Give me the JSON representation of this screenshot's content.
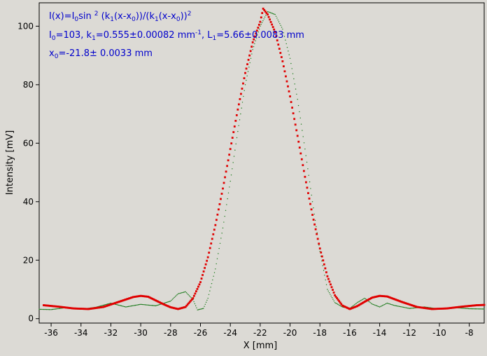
{
  "chart_data": {
    "type": "scatter",
    "xlabel": "X [mm]",
    "ylabel": "Intensity [mV]",
    "xlim": [
      -36.8,
      -7.0
    ],
    "ylim": [
      -1.5,
      108
    ],
    "xticks": [
      -36,
      -34,
      -32,
      -30,
      -28,
      -26,
      -24,
      -22,
      -20,
      -18,
      -16,
      -14,
      -12,
      -10,
      -8
    ],
    "yticks": [
      0,
      20,
      40,
      60,
      80,
      100
    ],
    "xtick_labels": [
      "-36",
      "-34",
      "-32",
      "-30",
      "-28",
      "-26",
      "-24",
      "-22",
      "-20",
      "-18",
      "-16",
      "-14",
      "-12",
      "-10",
      "-8"
    ],
    "ytick_labels": [
      "0",
      "20",
      "40",
      "60",
      "80",
      "100"
    ],
    "grid": false,
    "annotations": {
      "line1": {
        "a": "I(x)=I",
        "a_sub": "0",
        "b": "sin",
        "b_sup": "2",
        "c": " (k",
        "c_sub": "1",
        "d": "(x-x",
        "d_sub": "0",
        "e": "))/(k",
        "e_sub": "1",
        "f": "(x-x",
        "f_sub": "0",
        "g": "))",
        "g_sup": "2"
      },
      "line2": {
        "a": "I",
        "a_sub": "0",
        "b": "=103,  k",
        "b_sub": "1",
        "c": "=0.555±0.00082 mm",
        "c_sup": "-1",
        "d": ",   L",
        "d_sub": "1",
        "e": "=5.66±0.0083 mm"
      },
      "line3": {
        "a": "x",
        "a_sub": "0",
        "b": "=-21.8±   0.0033 mm"
      }
    },
    "fit": {
      "I0": 103,
      "k1": 0.555,
      "x0": -21.8,
      "baseline": 3.2
    },
    "series": [
      {
        "style": "fit-points",
        "color": "#e00000",
        "points": [
          [
            -36.5,
            4.6
          ],
          [
            -35.5,
            4.1
          ],
          [
            -34.5,
            3.5
          ],
          [
            -33.5,
            3.3
          ],
          [
            -32.5,
            4.0
          ],
          [
            -31.5,
            5.7
          ],
          [
            -30.5,
            7.4
          ],
          [
            -30.0,
            7.8
          ],
          [
            -29.5,
            7.5
          ],
          [
            -28.5,
            5.0
          ],
          [
            -28.0,
            3.9
          ],
          [
            -27.5,
            3.3
          ],
          [
            -27.0,
            4.0
          ],
          [
            -26.5,
            7.0
          ],
          [
            -26.0,
            12.5
          ],
          [
            -25.5,
            21.0
          ],
          [
            -25.0,
            32.0
          ],
          [
            -24.5,
            44.5
          ],
          [
            -24.0,
            58.0
          ],
          [
            -23.5,
            71.5
          ],
          [
            -23.0,
            84.0
          ],
          [
            -22.5,
            94.5
          ],
          [
            -22.0,
            101.5
          ],
          [
            -21.8,
            106.0
          ],
          [
            -21.5,
            104.0
          ],
          [
            -21.0,
            98.0
          ],
          [
            -20.5,
            88.0
          ],
          [
            -20.0,
            76.0
          ],
          [
            -19.5,
            62.5
          ],
          [
            -19.0,
            48.5
          ],
          [
            -18.5,
            35.5
          ],
          [
            -18.0,
            24.0
          ],
          [
            -17.5,
            14.5
          ],
          [
            -17.0,
            8.0
          ],
          [
            -16.5,
            4.5
          ],
          [
            -16.0,
            3.3
          ],
          [
            -15.5,
            4.3
          ],
          [
            -15.0,
            5.8
          ],
          [
            -14.5,
            7.2
          ],
          [
            -14.0,
            7.8
          ],
          [
            -13.5,
            7.6
          ],
          [
            -12.5,
            5.7
          ],
          [
            -11.5,
            4.0
          ],
          [
            -10.5,
            3.3
          ],
          [
            -9.5,
            3.5
          ],
          [
            -8.5,
            4.1
          ],
          [
            -7.5,
            4.6
          ],
          [
            -7.0,
            4.7
          ]
        ]
      },
      {
        "style": "measured-dotted",
        "color": "#1a7a1a",
        "points": [
          [
            -36.8,
            3.2
          ],
          [
            -36.0,
            3.1
          ],
          [
            -35.0,
            3.8
          ],
          [
            -34.0,
            3.2
          ],
          [
            -33.0,
            3.9
          ],
          [
            -32.0,
            5.3
          ],
          [
            -31.0,
            4.0
          ],
          [
            -30.0,
            4.9
          ],
          [
            -29.0,
            4.4
          ],
          [
            -28.0,
            6.0
          ],
          [
            -27.5,
            8.5
          ],
          [
            -27.0,
            9.2
          ],
          [
            -26.5,
            6.5
          ],
          [
            -26.2,
            3.0
          ],
          [
            -25.8,
            3.5
          ],
          [
            -25.5,
            7.0
          ],
          [
            -25.0,
            17.0
          ],
          [
            -24.5,
            31.0
          ],
          [
            -24.0,
            47.0
          ],
          [
            -23.5,
            64.0
          ],
          [
            -23.0,
            80.0
          ],
          [
            -22.5,
            92.0
          ],
          [
            -22.0,
            100.0
          ],
          [
            -21.5,
            105.0
          ],
          [
            -21.0,
            104.0
          ],
          [
            -20.5,
            99.0
          ],
          [
            -20.0,
            89.0
          ],
          [
            -19.5,
            75.0
          ],
          [
            -19.0,
            58.0
          ],
          [
            -18.5,
            40.0
          ],
          [
            -18.0,
            23.0
          ],
          [
            -17.5,
            10.0
          ],
          [
            -17.0,
            5.5
          ],
          [
            -16.5,
            4.0
          ],
          [
            -16.0,
            3.5
          ],
          [
            -15.5,
            5.5
          ],
          [
            -15.0,
            7.0
          ],
          [
            -14.5,
            5.0
          ],
          [
            -14.0,
            4.0
          ],
          [
            -13.5,
            5.3
          ],
          [
            -13.0,
            4.5
          ],
          [
            -12.0,
            3.5
          ],
          [
            -11.0,
            4.0
          ],
          [
            -10.0,
            3.3
          ],
          [
            -9.0,
            3.8
          ],
          [
            -8.0,
            3.4
          ],
          [
            -7.0,
            3.3
          ]
        ]
      }
    ]
  }
}
